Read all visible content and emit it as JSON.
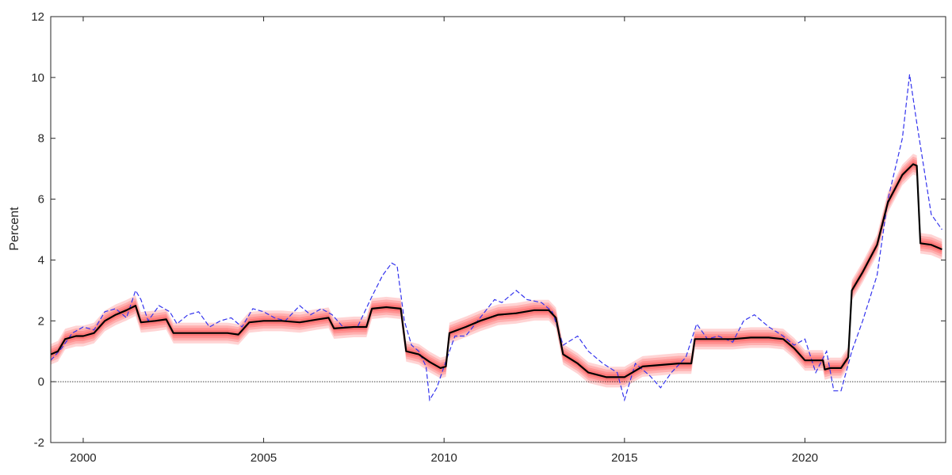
{
  "chart_data": {
    "type": "line",
    "title": "",
    "xlabel": "",
    "ylabel": "Percent",
    "xlim": [
      1999.1,
      2023.9
    ],
    "ylim": [
      -2,
      12
    ],
    "x_ticks": [
      2000,
      2005,
      2010,
      2015,
      2020
    ],
    "x_tick_labels": [
      "2000",
      "2005",
      "2010",
      "2015",
      "2020"
    ],
    "y_ticks": [
      -2,
      0,
      2,
      4,
      6,
      8,
      10,
      12
    ],
    "y_tick_labels": [
      "-2",
      "0",
      "2",
      "4",
      "6",
      "8",
      "10",
      "12"
    ],
    "grid": false,
    "legend": "none",
    "zero_line": {
      "y": 0,
      "style": "dotted",
      "color": "#000000"
    },
    "colors": {
      "median": "#000000",
      "band": "#ff0000",
      "dashed": "#3333ee",
      "axis": "#262626"
    },
    "series": [
      {
        "style": "solid-with-band",
        "x": [
          1999.1,
          1999.3,
          1999.5,
          1999.8,
          2000.0,
          2000.3,
          2000.6,
          2000.9,
          2001.2,
          2001.45,
          2001.6,
          2002.0,
          2002.3,
          2002.5,
          2003.0,
          2003.5,
          2004.0,
          2004.3,
          2004.6,
          2005.0,
          2005.5,
          2006.0,
          2006.5,
          2006.8,
          2006.95,
          2007.5,
          2007.85,
          2008.0,
          2008.4,
          2008.8,
          2008.95,
          2009.3,
          2009.6,
          2009.9,
          2010.05,
          2010.15,
          2010.6,
          2011.0,
          2011.5,
          2012.0,
          2012.5,
          2012.9,
          2013.1,
          2013.3,
          2013.7,
          2014.0,
          2014.5,
          2015.0,
          2015.5,
          2016.0,
          2016.5,
          2016.85,
          2016.95,
          2017.5,
          2018.0,
          2018.5,
          2019.0,
          2019.4,
          2019.7,
          2020.0,
          2020.5,
          2020.55,
          2020.7,
          2021.0,
          2021.2,
          2021.3,
          2021.6,
          2022.0,
          2022.3,
          2022.7,
          2023.0,
          2023.1,
          2023.2,
          2023.5,
          2023.8
        ],
        "values": [
          0.9,
          1.0,
          1.4,
          1.5,
          1.5,
          1.6,
          2.0,
          2.2,
          2.35,
          2.5,
          1.95,
          2.0,
          2.05,
          1.6,
          1.6,
          1.6,
          1.6,
          1.55,
          1.95,
          2.0,
          2.0,
          1.95,
          2.05,
          2.1,
          1.75,
          1.8,
          1.8,
          2.4,
          2.45,
          2.4,
          1.0,
          0.9,
          0.65,
          0.45,
          0.5,
          1.6,
          1.8,
          2.0,
          2.2,
          2.25,
          2.35,
          2.35,
          2.1,
          0.9,
          0.6,
          0.3,
          0.15,
          0.15,
          0.5,
          0.55,
          0.6,
          0.6,
          1.4,
          1.4,
          1.4,
          1.45,
          1.45,
          1.4,
          1.1,
          0.7,
          0.7,
          0.4,
          0.45,
          0.45,
          0.8,
          3.0,
          3.6,
          4.5,
          5.9,
          6.8,
          7.15,
          7.1,
          4.55,
          4.5,
          4.35
        ]
      },
      {
        "style": "dashed",
        "x": [
          1999.1,
          1999.4,
          1999.7,
          2000.0,
          2000.3,
          2000.6,
          2000.9,
          2001.2,
          2001.45,
          2001.6,
          2001.8,
          2002.1,
          2002.4,
          2002.6,
          2002.9,
          2003.2,
          2003.5,
          2003.8,
          2004.1,
          2004.4,
          2004.7,
          2005.0,
          2005.3,
          2005.6,
          2006.0,
          2006.3,
          2006.6,
          2006.9,
          2007.2,
          2007.6,
          2008.0,
          2008.3,
          2008.55,
          2008.7,
          2008.9,
          2009.1,
          2009.3,
          2009.5,
          2009.6,
          2009.8,
          2010.0,
          2010.3,
          2010.6,
          2011.0,
          2011.4,
          2011.6,
          2012.0,
          2012.3,
          2012.7,
          2013.0,
          2013.3,
          2013.7,
          2014.0,
          2014.4,
          2014.8,
          2015.0,
          2015.3,
          2015.7,
          2016.0,
          2016.3,
          2016.7,
          2017.0,
          2017.3,
          2017.6,
          2018.0,
          2018.3,
          2018.6,
          2019.0,
          2019.4,
          2019.7,
          2020.0,
          2020.3,
          2020.6,
          2020.8,
          2021.0,
          2021.3,
          2021.6,
          2022.0,
          2022.3,
          2022.7,
          2022.9,
          2023.1,
          2023.3,
          2023.5,
          2023.8
        ],
        "values": [
          0.7,
          1.1,
          1.6,
          1.8,
          1.7,
          2.3,
          2.4,
          2.1,
          3.0,
          2.7,
          2.0,
          2.5,
          2.3,
          1.9,
          2.2,
          2.3,
          1.8,
          2.0,
          2.1,
          1.8,
          2.4,
          2.3,
          2.1,
          2.0,
          2.5,
          2.2,
          2.4,
          2.2,
          1.8,
          1.8,
          2.8,
          3.5,
          3.9,
          3.8,
          2.0,
          1.2,
          1.0,
          0.5,
          -0.6,
          -0.2,
          0.5,
          1.5,
          1.5,
          2.1,
          2.7,
          2.6,
          3.0,
          2.7,
          2.6,
          2.3,
          1.2,
          1.5,
          1.0,
          0.6,
          0.3,
          -0.6,
          0.6,
          0.2,
          -0.2,
          0.3,
          0.8,
          1.9,
          1.4,
          1.5,
          1.3,
          2.0,
          2.2,
          1.8,
          1.5,
          1.2,
          1.4,
          0.3,
          1.0,
          -0.3,
          -0.3,
          1.0,
          2.0,
          3.5,
          6.0,
          8.0,
          10.1,
          8.5,
          7.0,
          5.5,
          5.0
        ]
      }
    ]
  }
}
